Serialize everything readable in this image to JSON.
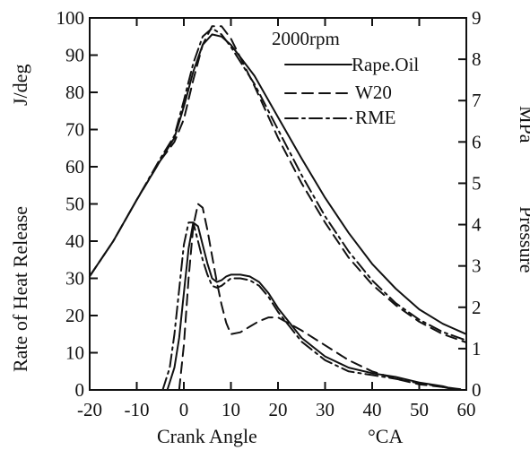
{
  "chart_data": {
    "type": "line",
    "annotation": "2000rpm",
    "xlabel": "Crank Angle",
    "xunit": "°CA",
    "ylabel_left": "Rate of Heat Release",
    "yunit_left": "J/deg",
    "ylabel_right": "Pressure",
    "yunit_right": "MPa",
    "xlim": [
      -20,
      60
    ],
    "ylim_left": [
      0,
      100
    ],
    "ylim_right": [
      0,
      9
    ],
    "x_ticks": [
      -20,
      -10,
      0,
      10,
      20,
      30,
      40,
      50,
      60
    ],
    "x_tick_labels": [
      "-20",
      "-10",
      "0",
      "10",
      "20",
      "30",
      "40",
      "50",
      "60"
    ],
    "y_left_ticks": [
      0,
      10,
      20,
      30,
      40,
      50,
      60,
      70,
      80,
      90,
      100
    ],
    "y_left_tick_labels": [
      "0",
      "10",
      "20",
      "30",
      "40",
      "50",
      "60",
      "70",
      "80",
      "90",
      "100"
    ],
    "y_right_ticks": [
      0,
      1,
      2,
      3,
      4,
      5,
      6,
      7,
      8,
      9
    ],
    "y_right_tick_labels": [
      "0",
      "1",
      "2",
      "3",
      "4",
      "5",
      "6",
      "7",
      "8",
      "9"
    ],
    "grid": false,
    "legend_placement": "top-right",
    "series": [
      {
        "name": "Rape.Oil",
        "dash": "solid",
        "axis": "right",
        "group": "pressure",
        "x": [
          -20,
          -15,
          -10,
          -5,
          -2,
          0,
          2,
          4,
          6,
          8,
          10,
          15,
          20,
          25,
          30,
          35,
          40,
          45,
          50,
          55,
          60
        ],
        "y": [
          2.75,
          3.6,
          4.6,
          5.55,
          6.1,
          6.85,
          7.7,
          8.35,
          8.6,
          8.55,
          8.35,
          7.6,
          6.6,
          5.6,
          4.65,
          3.8,
          3.05,
          2.45,
          1.95,
          1.6,
          1.35
        ]
      },
      {
        "name": "W20",
        "dash": "dashed",
        "axis": "right",
        "group": "pressure",
        "x": [
          -20,
          -15,
          -10,
          -5,
          -2,
          0,
          2,
          4,
          6,
          8,
          10,
          15,
          20,
          25,
          30,
          35,
          40,
          45,
          50,
          55,
          60
        ],
        "y": [
          2.75,
          3.6,
          4.6,
          5.55,
          6.0,
          6.55,
          7.5,
          8.35,
          8.8,
          8.8,
          8.5,
          7.35,
          6.1,
          5.0,
          4.05,
          3.2,
          2.55,
          2.05,
          1.65,
          1.35,
          1.15
        ]
      },
      {
        "name": "RME",
        "dash": "dash-dot",
        "axis": "right",
        "group": "pressure",
        "x": [
          -20,
          -15,
          -10,
          -5,
          -2,
          0,
          2,
          4,
          6,
          8,
          10,
          15,
          20,
          25,
          30,
          35,
          40,
          45,
          50,
          55,
          60
        ],
        "y": [
          2.75,
          3.6,
          4.6,
          5.6,
          6.15,
          7.0,
          7.9,
          8.55,
          8.75,
          8.6,
          8.3,
          7.4,
          6.3,
          5.2,
          4.2,
          3.35,
          2.65,
          2.1,
          1.7,
          1.4,
          1.2
        ]
      },
      {
        "name": "Rape.Oil",
        "dash": "solid",
        "axis": "left",
        "group": "heat-release",
        "x": [
          -3.5,
          -2,
          -1,
          0,
          1,
          2,
          3,
          4,
          5,
          6,
          7,
          8,
          9,
          10,
          12,
          14,
          16,
          18,
          20,
          25,
          30,
          35,
          40,
          45,
          50,
          55,
          58
        ],
        "y": [
          0,
          6,
          14,
          26,
          38,
          45,
          44,
          39,
          34,
          30,
          29,
          29.5,
          30.5,
          31,
          31,
          30.5,
          29,
          26,
          22,
          14,
          9,
          6,
          4.5,
          3.5,
          2,
          1,
          0
        ]
      },
      {
        "name": "W20",
        "dash": "dashed",
        "axis": "left",
        "group": "heat-release",
        "x": [
          -1,
          0,
          1,
          2,
          3,
          4,
          5,
          6,
          7,
          8,
          9,
          10,
          12,
          14,
          16,
          18,
          20,
          25,
          30,
          35,
          40,
          45,
          50,
          55,
          60
        ],
        "y": [
          0,
          12,
          30,
          44,
          50,
          49,
          43,
          36,
          29,
          23,
          18,
          15,
          15.5,
          17,
          18.5,
          19.5,
          19.5,
          16,
          12,
          8,
          5,
          3,
          1.5,
          0.8,
          0
        ]
      },
      {
        "name": "RME",
        "dash": "dash-dot",
        "axis": "left",
        "group": "heat-release",
        "x": [
          -4.5,
          -3,
          -2,
          -1,
          0,
          1,
          2,
          3,
          4,
          5,
          6,
          7,
          8,
          9,
          10,
          12,
          14,
          16,
          18,
          20,
          25,
          30,
          35,
          40,
          45,
          50,
          55,
          58
        ],
        "y": [
          0,
          6,
          15,
          27,
          39,
          45,
          45,
          40,
          35,
          31,
          28,
          27.5,
          28,
          29,
          30,
          30,
          29.5,
          28,
          25,
          21,
          13,
          8,
          5,
          4,
          3,
          1.8,
          0.8,
          0
        ]
      }
    ]
  }
}
